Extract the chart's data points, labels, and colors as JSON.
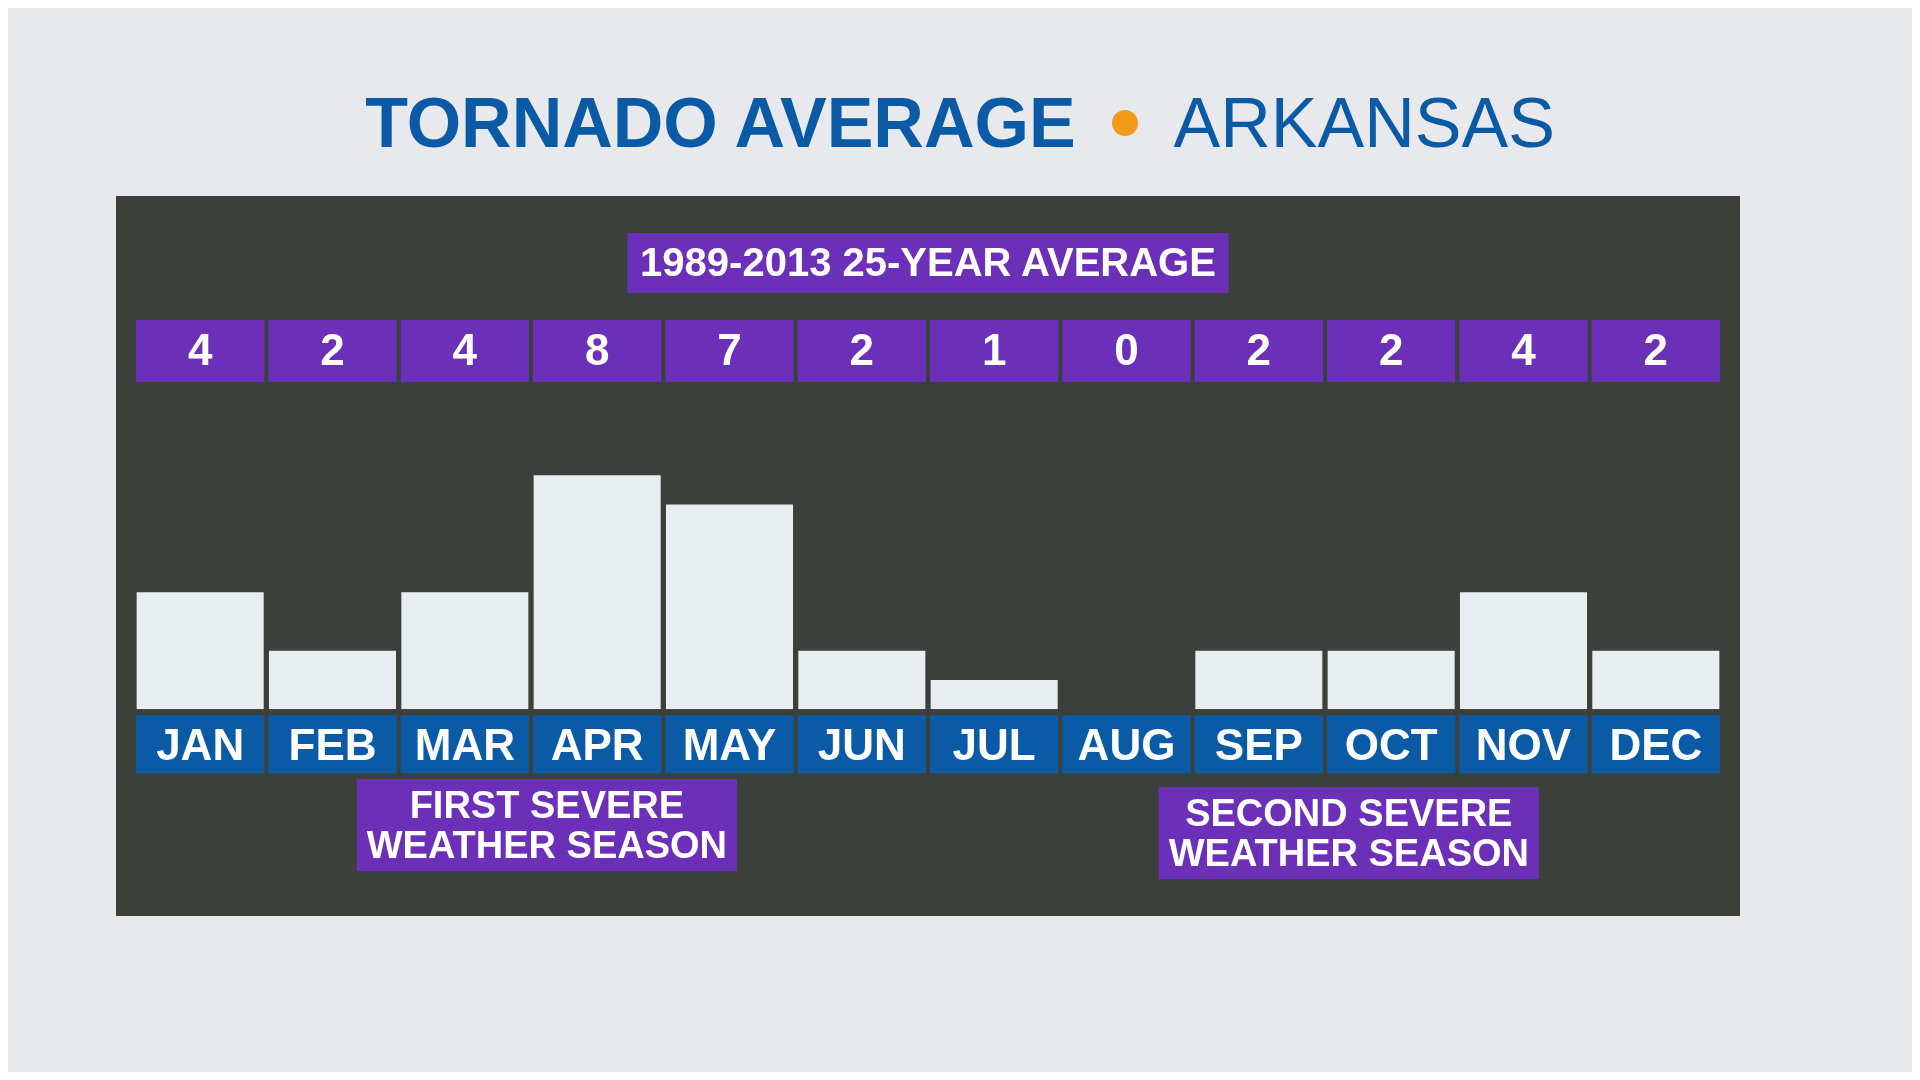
{
  "chart_data": {
    "type": "bar",
    "title": "TORNADO AVERAGE",
    "subtitle": "ARKANSAS",
    "categories": [
      "JAN",
      "FEB",
      "MAR",
      "APR",
      "MAY",
      "JUN",
      "JUL",
      "AUG",
      "SEP",
      "OCT",
      "NOV",
      "DEC"
    ],
    "values": [
      4,
      2,
      4,
      8,
      7,
      2,
      1,
      0,
      2,
      2,
      4,
      2
    ],
    "color": "#e8edf0",
    "data_labels": true,
    "grid": false,
    "legend": false,
    "annotations": [
      "1989-2013 25-YEAR AVERAGE",
      "FIRST SEVERE WEATHER SEASON",
      "SECOND SEVERE WEATHER SEASON"
    ]
  }
}
